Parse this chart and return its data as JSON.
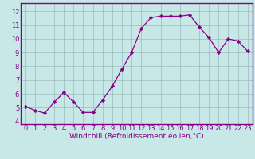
{
  "x": [
    0,
    1,
    2,
    3,
    4,
    5,
    6,
    7,
    8,
    9,
    10,
    11,
    12,
    13,
    14,
    15,
    16,
    17,
    18,
    19,
    20,
    21,
    22,
    23
  ],
  "y": [
    5.1,
    4.8,
    4.6,
    5.4,
    6.1,
    5.4,
    4.65,
    4.65,
    5.55,
    6.55,
    7.8,
    9.0,
    10.75,
    11.55,
    11.65,
    11.65,
    11.65,
    11.75,
    10.85,
    10.1,
    9.0,
    10.0,
    9.85,
    9.1
  ],
  "line_color": "#880088",
  "marker": "D",
  "marker_size": 2.2,
  "line_width": 0.9,
  "bg_color": "#c8e8e8",
  "plot_bg_color": "#c8e8e8",
  "grid_color": "#99bbbb",
  "xlabel": "Windchill (Refroidissement éolien,°C)",
  "xlabel_color": "#880088",
  "xlabel_fontsize": 6.5,
  "tick_color": "#880088",
  "tick_fontsize": 6.0,
  "ylim": [
    3.8,
    12.6
  ],
  "yticks": [
    4,
    5,
    6,
    7,
    8,
    9,
    10,
    11,
    12
  ],
  "border_color": "#880088",
  "border_lw": 1.0
}
